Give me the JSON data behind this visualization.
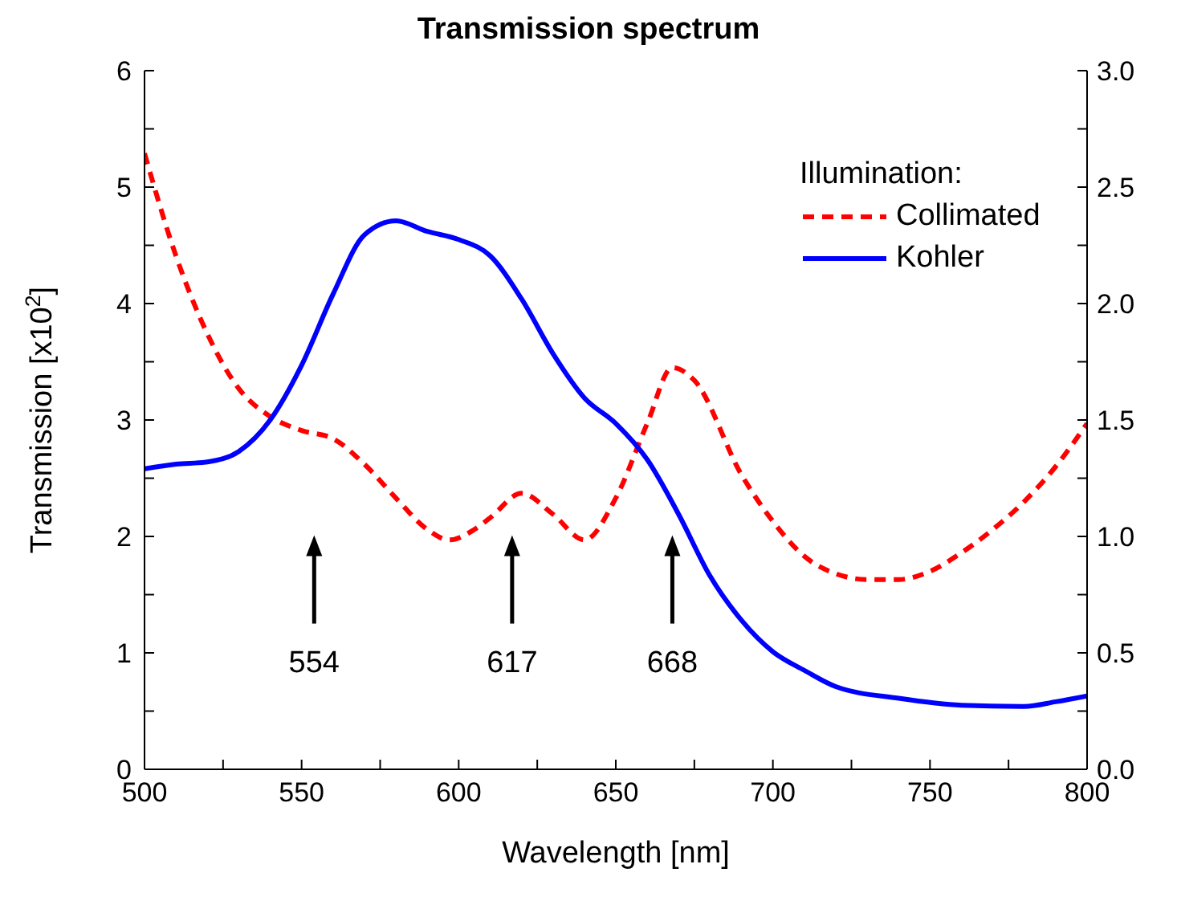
{
  "chart_data": {
    "type": "line",
    "title": "Transmission spectrum",
    "xlabel": "Wavelength  [nm]",
    "ylabel": "Transmission [x10$^{2}$]",
    "legend_title": "Illumination:",
    "legend": "top right",
    "grid": false,
    "marker": "none",
    "xlim": [
      500,
      800
    ],
    "xticks": [
      500,
      {
        "value": 525,
        "label": null
      },
      550,
      {
        "value": 575,
        "label": null
      },
      600,
      {
        "value": 625,
        "label": null
      },
      650,
      {
        "value": 675,
        "label": null
      },
      700,
      {
        "value": 725,
        "label": null
      },
      750,
      {
        "value": 775,
        "label": null
      },
      800
    ],
    "ylim": [
      0,
      6
    ],
    "yticks": [
      0,
      {
        "value": 0.5,
        "label": null
      },
      1,
      {
        "value": 1.5,
        "label": null
      },
      2,
      {
        "value": 2.5,
        "label": null
      },
      3,
      {
        "value": 3.5,
        "label": null
      },
      4,
      {
        "value": 4.5,
        "label": null
      },
      5,
      {
        "value": 5.5,
        "label": null
      },
      6
    ],
    "y2lim": [
      0,
      3
    ],
    "y2ticks": [
      {
        "value": 0,
        "label": "0.0"
      },
      {
        "value": 0.25,
        "label": null
      },
      {
        "value": 0.5,
        "label": "0.5"
      },
      {
        "value": 0.75,
        "label": null
      },
      {
        "value": 1,
        "label": "1.0"
      },
      {
        "value": 1.25,
        "label": null
      },
      {
        "value": 1.5,
        "label": "1.5"
      },
      {
        "value": 1.75,
        "label": null
      },
      {
        "value": 2,
        "label": "2.0"
      },
      {
        "value": 2.25,
        "label": null
      },
      {
        "value": 2.5,
        "label": "2.5"
      },
      {
        "value": 2.75,
        "label": null
      },
      {
        "value": 3,
        "label": "3.0"
      }
    ],
    "series": [
      {
        "name": "Collimated",
        "color": "#ff0000",
        "line_style": "dashed",
        "x": [
          500,
          510,
          520,
          530,
          540,
          550,
          560,
          570,
          580,
          590,
          597,
          605,
          610,
          620,
          630,
          640,
          650,
          660,
          668,
          675,
          690,
          700,
          710,
          720,
          730,
          740,
          750,
          760,
          770,
          780,
          790,
          800
        ],
        "values": [
          5.29,
          4.41,
          3.74,
          3.27,
          3.03,
          2.91,
          2.84,
          2.62,
          2.33,
          2.06,
          1.97,
          2.06,
          2.16,
          2.37,
          2.19,
          1.97,
          2.33,
          2.97,
          3.45,
          3.34,
          2.53,
          2.13,
          1.83,
          1.68,
          1.63,
          1.63,
          1.7,
          1.86,
          2.06,
          2.3,
          2.6,
          2.97
        ]
      },
      {
        "name": "Kohler",
        "color": "#0000ff",
        "line_style": "solid",
        "x": [
          500,
          510,
          520,
          530,
          540,
          550,
          560,
          570,
          580,
          590,
          600,
          610,
          620,
          630,
          640,
          650,
          660,
          670,
          680,
          690,
          700,
          710,
          720,
          740,
          760,
          780,
          790,
          800
        ],
        "values": [
          2.58,
          2.62,
          2.64,
          2.73,
          3.0,
          3.47,
          4.08,
          4.59,
          4.71,
          4.62,
          4.55,
          4.41,
          4.04,
          3.57,
          3.19,
          2.97,
          2.66,
          2.19,
          1.66,
          1.28,
          1.01,
          0.85,
          0.71,
          0.61,
          0.55,
          0.54,
          0.58,
          0.63
        ]
      }
    ],
    "annotations": [
      "554",
      "617",
      "668"
    ]
  }
}
